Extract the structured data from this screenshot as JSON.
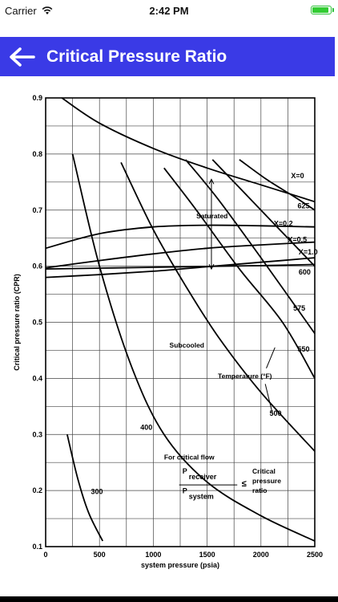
{
  "status_bar": {
    "carrier": "Carrier",
    "time": "2:42 PM"
  },
  "header": {
    "title": "Critical Pressure Ratio",
    "back_icon": "arrow-left-icon",
    "color": "#3a3ae6"
  },
  "chart_data": {
    "type": "line",
    "xlabel": "system pressure (psia)",
    "ylabel": "Critical pressure ratio (CPR)",
    "xlim": [
      0,
      2500
    ],
    "ylim": [
      0.1,
      0.9
    ],
    "x_ticks": [
      "0",
      "500",
      "1000",
      "1500",
      "2000",
      "2500"
    ],
    "y_ticks": [
      "0.1",
      "0.2",
      "0.3",
      "0.4",
      "0.5",
      "0.6",
      "0.7",
      "0.8",
      "0.9"
    ],
    "grid": true,
    "series": [
      {
        "name": "X=0",
        "points": [
          [
            150,
            0.9
          ],
          [
            500,
            0.855
          ],
          [
            1000,
            0.81
          ],
          [
            1500,
            0.775
          ],
          [
            2000,
            0.745
          ],
          [
            2500,
            0.715
          ]
        ]
      },
      {
        "name": "X=0.2",
        "points": [
          [
            0,
            0.632
          ],
          [
            500,
            0.658
          ],
          [
            1000,
            0.67
          ],
          [
            1500,
            0.673
          ],
          [
            2000,
            0.672
          ],
          [
            2500,
            0.67
          ]
        ]
      },
      {
        "name": "X=0.5",
        "points": [
          [
            0,
            0.597
          ],
          [
            500,
            0.61
          ],
          [
            1000,
            0.622
          ],
          [
            1500,
            0.632
          ],
          [
            2000,
            0.638
          ],
          [
            2500,
            0.643
          ]
        ]
      },
      {
        "name": "X=1.0",
        "points": [
          [
            0,
            0.58
          ],
          [
            500,
            0.585
          ],
          [
            1000,
            0.591
          ],
          [
            1500,
            0.599
          ],
          [
            2000,
            0.607
          ],
          [
            2500,
            0.615
          ]
        ]
      },
      {
        "name": "",
        "points": [
          [
            0,
            0.595
          ],
          [
            1000,
            0.598
          ],
          [
            2000,
            0.601
          ],
          [
            2500,
            0.603
          ]
        ]
      },
      {
        "name": "625",
        "points": [
          [
            1800,
            0.79
          ],
          [
            2050,
            0.755
          ],
          [
            2300,
            0.725
          ],
          [
            2500,
            0.7
          ]
        ]
      },
      {
        "name": "600",
        "points": [
          [
            1550,
            0.79
          ],
          [
            1800,
            0.74
          ],
          [
            2100,
            0.68
          ],
          [
            2500,
            0.6
          ]
        ]
      },
      {
        "name": "575",
        "points": [
          [
            1300,
            0.79
          ],
          [
            1600,
            0.72
          ],
          [
            2000,
            0.615
          ],
          [
            2500,
            0.48
          ]
        ]
      },
      {
        "name": "550",
        "points": [
          [
            1100,
            0.775
          ],
          [
            1400,
            0.7
          ],
          [
            1800,
            0.595
          ],
          [
            2200,
            0.5
          ],
          [
            2500,
            0.4
          ]
        ]
      },
      {
        "name": "500",
        "points": [
          [
            700,
            0.785
          ],
          [
            1000,
            0.665
          ],
          [
            1300,
            0.565
          ],
          [
            1600,
            0.475
          ],
          [
            2000,
            0.375
          ],
          [
            2500,
            0.27
          ]
        ]
      },
      {
        "name": "400",
        "points": [
          [
            250,
            0.8
          ],
          [
            500,
            0.6
          ],
          [
            800,
            0.42
          ],
          [
            1100,
            0.3
          ],
          [
            1500,
            0.215
          ],
          [
            2000,
            0.155
          ],
          [
            2500,
            0.11
          ]
        ]
      },
      {
        "name": "300",
        "points": [
          [
            200,
            0.3
          ],
          [
            300,
            0.22
          ],
          [
            400,
            0.16
          ],
          [
            530,
            0.11
          ]
        ]
      }
    ],
    "annotations": {
      "saturated": "Saturated",
      "subcooled": "Subcooled",
      "temperature": "Temperature (°F)",
      "critical_flow": "For critical flow",
      "p_receiver": "P",
      "receiver": "receiver",
      "p_system": "P",
      "system": "system",
      "le": "≤",
      "critical": "Critical",
      "pressure": "pressure",
      "ratio": "ratio"
    }
  }
}
